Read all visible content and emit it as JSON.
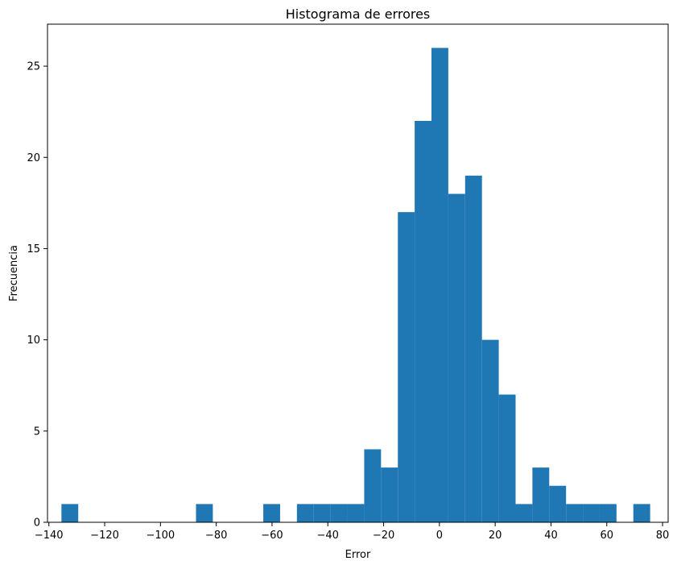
{
  "chart_data": {
    "type": "bar",
    "title": "Histograma de errores",
    "xlabel": "Error",
    "ylabel": "Frecuencia",
    "xlim": [
      -140.5,
      82
    ],
    "ylim": [
      0,
      27.3
    ],
    "xticks": [
      -140,
      -120,
      -100,
      -80,
      -60,
      -40,
      -20,
      0,
      20,
      40,
      60,
      80
    ],
    "xtick_labels": [
      "−140",
      "−120",
      "−100",
      "−80",
      "−60",
      "−40",
      "−20",
      "0",
      "20",
      "40",
      "60",
      "80"
    ],
    "yticks": [
      0,
      5,
      10,
      15,
      20,
      25
    ],
    "ytick_labels": [
      "0",
      "5",
      "10",
      "15",
      "20",
      "25"
    ],
    "grid": false,
    "bar_color": "#1f77b4",
    "bin_start": -135.5,
    "bin_width": 6.03,
    "values": [
      1,
      0,
      0,
      0,
      0,
      0,
      0,
      0,
      1,
      0,
      0,
      0,
      1,
      0,
      1,
      1,
      1,
      1,
      4,
      3,
      17,
      22,
      26,
      18,
      19,
      10,
      7,
      1,
      3,
      2,
      1,
      1,
      1,
      0,
      1
    ]
  }
}
